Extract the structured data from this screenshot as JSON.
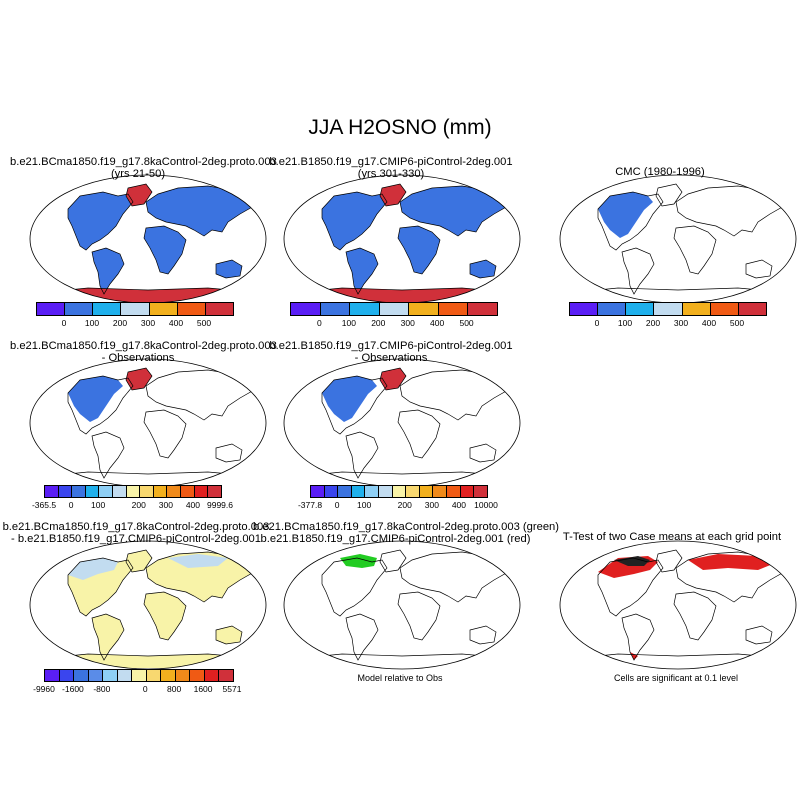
{
  "figure": {
    "title": "JJA H2OSNO (mm)"
  },
  "panels": [
    {
      "id": "p1",
      "title1": "b.e21.BCma1850.f19_g17.8kaControl-2deg.proto.003",
      "title2": "(yrs 21-50)"
    },
    {
      "id": "p2",
      "title1": "b.e21.B1850.f19_g17.CMIP6-piControl-2deg.001",
      "title2": "(yrs 301-330)"
    },
    {
      "id": "p3",
      "title1": "CMC (1980-1996)",
      "title2": ""
    },
    {
      "id": "p4",
      "title1": "b.e21.BCma1850.f19_g17.8kaControl-2deg.proto.003",
      "title2": "- Observations"
    },
    {
      "id": "p5",
      "title1": "b.e21.B1850.f19_g17.CMIP6-piControl-2deg.001",
      "title2": "- Observations"
    },
    {
      "id": "p7",
      "title1": "b.e21.BCma1850.f19_g17.8kaControl-2deg.proto.003",
      "title2": "- b.e21.B1850.f19_g17.CMIP6-piControl-2deg.001"
    },
    {
      "id": "p8",
      "title1": "b.e21.BCma1850.f19_g17.8kaControl-2deg.proto.003 (green)",
      "title2": "b.e21.B1850.f19_g17.CMIP6-piControl-2deg.001 (red)"
    },
    {
      "id": "p9",
      "title1": "T-Test of two Case means at each grid point",
      "title2": ""
    }
  ],
  "notes": {
    "model_relative": "Model relative to Obs",
    "cells_significant": "Cells are significant at 0.1 level"
  },
  "colorbars": {
    "abs": {
      "colors": [
        "#5a1ef5",
        "#3b73e0",
        "#1fb0ec",
        "#c2dcf0",
        "#f2b01e",
        "#f05a14",
        "#d0303a"
      ],
      "labels": [
        "0",
        "100",
        "200",
        "300",
        "400",
        "500"
      ]
    },
    "diff1": {
      "colors": [
        "#5a1ef5",
        "#3a45ee",
        "#3b73e0",
        "#1fb0ec",
        "#8ecff5",
        "#c2dcf0",
        "#f8f3a8",
        "#f8d870",
        "#f2b01e",
        "#f08a1a",
        "#f05a14",
        "#e02020",
        "#d0303a"
      ],
      "labels": [
        "-365.5",
        "0",
        "100",
        "200",
        "300",
        "400",
        "9999.6"
      ]
    },
    "diff2": {
      "colors": [
        "#5a1ef5",
        "#3a45ee",
        "#3b73e0",
        "#1fb0ec",
        "#8ecff5",
        "#c2dcf0",
        "#f8f3a8",
        "#f8d870",
        "#f2b01e",
        "#f08a1a",
        "#f05a14",
        "#e02020",
        "#d0303a"
      ],
      "labels": [
        "-377.8",
        "0",
        "100",
        "200",
        "300",
        "400",
        "10000"
      ]
    },
    "case": {
      "colors": [
        "#5a1ef5",
        "#3a45ee",
        "#3b73e0",
        "#5a8ce8",
        "#8ecff5",
        "#c2dcf0",
        "#f8f3a8",
        "#f8d870",
        "#f2b01e",
        "#f08a1a",
        "#f05a14",
        "#e02020",
        "#d0303a"
      ],
      "labels": [
        "-9960",
        "-1600",
        "-800",
        "0",
        "800",
        "1600",
        "5571"
      ]
    }
  }
}
